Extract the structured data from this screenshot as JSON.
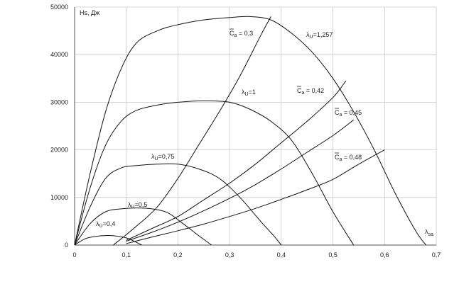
{
  "chart_data": {
    "type": "line",
    "xlim": [
      0,
      0.7
    ],
    "ylim": [
      0,
      50000
    ],
    "x_ticks": [
      0,
      0.1,
      0.2,
      0.3,
      0.4,
      0.5,
      0.6,
      0.7
    ],
    "x_tick_labels": [
      "0",
      "0,1",
      "0,2",
      "0,3",
      "0,4",
      "0,5",
      "0,6",
      "0,7"
    ],
    "y_ticks": [
      0,
      10000,
      20000,
      30000,
      40000,
      50000
    ],
    "y_tick_labels": [
      "0",
      "10000",
      "20000",
      "30000",
      "40000",
      "50000"
    ],
    "ylabel": "Hs, Дж",
    "xlabel": "λ",
    "xlabel_sub": "sa",
    "grid": true,
    "series": [
      {
        "name": "λU=0,4",
        "label_main": "λ",
        "label_sub": "U",
        "label_rest": "=0,4",
        "x": [
          0,
          0.02,
          0.04,
          0.06,
          0.08,
          0.1,
          0.115,
          0.13
        ],
        "y": [
          0,
          1300,
          1800,
          2000,
          1900,
          1500,
          800,
          0
        ]
      },
      {
        "name": "λU=0,5",
        "label_main": "λ",
        "label_sub": "U",
        "label_rest": "=0,5",
        "x": [
          0,
          0.03,
          0.06,
          0.09,
          0.12,
          0.15,
          0.18,
          0.21,
          0.24,
          0.265
        ],
        "y": [
          0,
          4500,
          7000,
          7600,
          7800,
          7600,
          6800,
          4500,
          2000,
          0
        ]
      },
      {
        "name": "λU=0,75",
        "label_main": "λ",
        "label_sub": "U",
        "label_rest": "=0,75",
        "x": [
          0,
          0.03,
          0.06,
          0.09,
          0.12,
          0.16,
          0.2,
          0.24,
          0.28,
          0.32,
          0.36,
          0.385,
          0.4
        ],
        "y": [
          0,
          8000,
          14000,
          16200,
          16700,
          17000,
          17000,
          16000,
          14000,
          10000,
          5000,
          2000,
          0
        ]
      },
      {
        "name": "λU=1",
        "label_main": "λ",
        "label_sub": "U",
        "label_rest": "=1",
        "x": [
          0,
          0.03,
          0.06,
          0.09,
          0.12,
          0.16,
          0.2,
          0.25,
          0.3,
          0.34,
          0.38,
          0.42,
          0.46,
          0.5,
          0.54
        ],
        "y": [
          0,
          12000,
          21000,
          26000,
          28300,
          29400,
          30000,
          30300,
          30000,
          28500,
          26000,
          22000,
          15000,
          7000,
          0
        ]
      },
      {
        "name": "λU=1,257",
        "label_main": "λ",
        "label_sub": "U",
        "label_rest": "=1,257",
        "x": [
          0,
          0.03,
          0.06,
          0.09,
          0.12,
          0.16,
          0.2,
          0.25,
          0.3,
          0.34,
          0.38,
          0.42,
          0.46,
          0.5,
          0.54,
          0.58,
          0.62,
          0.66,
          0.68
        ],
        "y": [
          0,
          15000,
          28000,
          37000,
          42500,
          45000,
          46300,
          47300,
          47800,
          48000,
          47300,
          44500,
          40500,
          35000,
          28000,
          20000,
          11000,
          3000,
          0
        ]
      },
      {
        "name": "Ca=0,3",
        "label_main": "C",
        "label_sub": "a",
        "label_rest": " = 0,3",
        "x": [
          0.075,
          0.12,
          0.16,
          0.2,
          0.24,
          0.28,
          0.32,
          0.36,
          0.38
        ],
        "y": [
          0,
          4000,
          8000,
          14000,
          21000,
          28000,
          35500,
          44000,
          48000
        ]
      },
      {
        "name": "Ca=0,42",
        "label_main": "C",
        "label_sub": "a",
        "label_rest": " = 0,42",
        "x": [
          0.1,
          0.15,
          0.2,
          0.25,
          0.3,
          0.35,
          0.4,
          0.45,
          0.5,
          0.525
        ],
        "y": [
          1000,
          3500,
          6000,
          9500,
          13000,
          17000,
          21500,
          26000,
          31000,
          34500
        ]
      },
      {
        "name": "Ca=0,45",
        "label_main": "C",
        "label_sub": "a",
        "label_rest": " = 0,45",
        "x": [
          0.1,
          0.15,
          0.2,
          0.25,
          0.3,
          0.35,
          0.4,
          0.45,
          0.5,
          0.54
        ],
        "y": [
          800,
          2700,
          4800,
          7200,
          9800,
          12700,
          16000,
          19500,
          23000,
          26300
        ]
      },
      {
        "name": "Ca=0,48",
        "label_main": "C",
        "label_sub": "a",
        "label_rest": " = 0,48",
        "x": [
          0.1,
          0.15,
          0.2,
          0.25,
          0.3,
          0.35,
          0.4,
          0.45,
          0.5,
          0.55,
          0.6
        ],
        "y": [
          300,
          1700,
          3000,
          4400,
          6000,
          7700,
          9600,
          11600,
          13800,
          17000,
          20000
        ]
      }
    ]
  }
}
